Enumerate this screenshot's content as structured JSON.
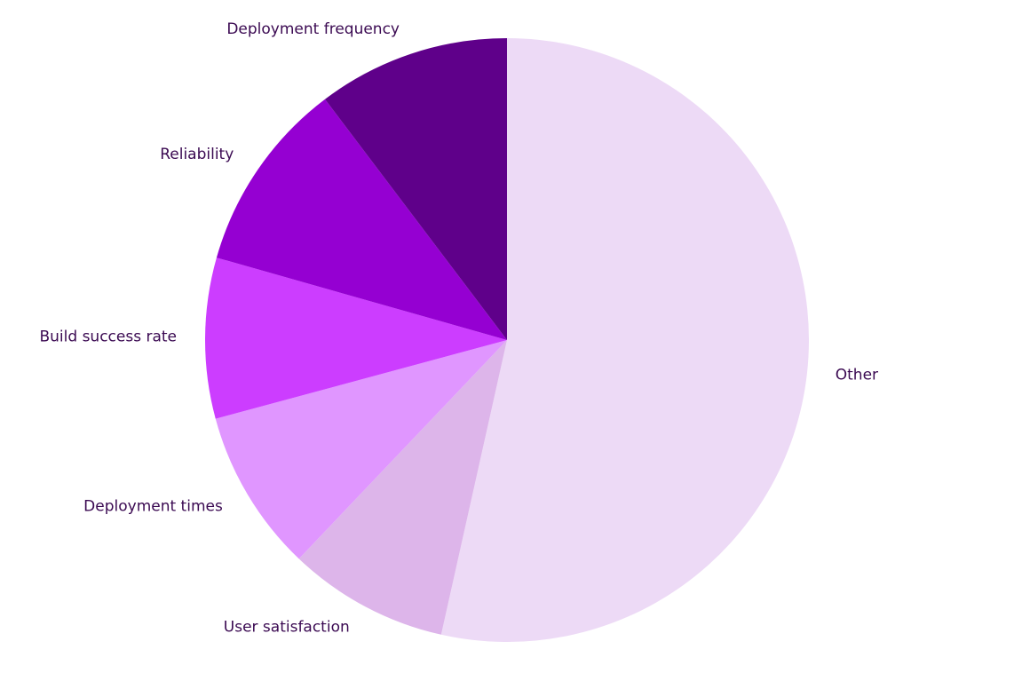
{
  "chart_data": {
    "type": "pie",
    "start_angle": "top, clockwise",
    "slices": [
      {
        "label": "Other",
        "value": 53.5,
        "color": "#eddaf6"
      },
      {
        "label": "User satisfaction",
        "value": 8.6,
        "color": "#ddb5ea"
      },
      {
        "label": "Deployment times",
        "value": 8.7,
        "color": "#e096ff"
      },
      {
        "label": "Build success rate",
        "value": 8.6,
        "color": "#cc3dff"
      },
      {
        "label": "Reliability",
        "value": 10.3,
        "color": "#9500d2"
      },
      {
        "label": "Deployment frequency",
        "value": 10.3,
        "color": "#5f008a"
      }
    ],
    "legend": "none (labels beside slices)"
  }
}
